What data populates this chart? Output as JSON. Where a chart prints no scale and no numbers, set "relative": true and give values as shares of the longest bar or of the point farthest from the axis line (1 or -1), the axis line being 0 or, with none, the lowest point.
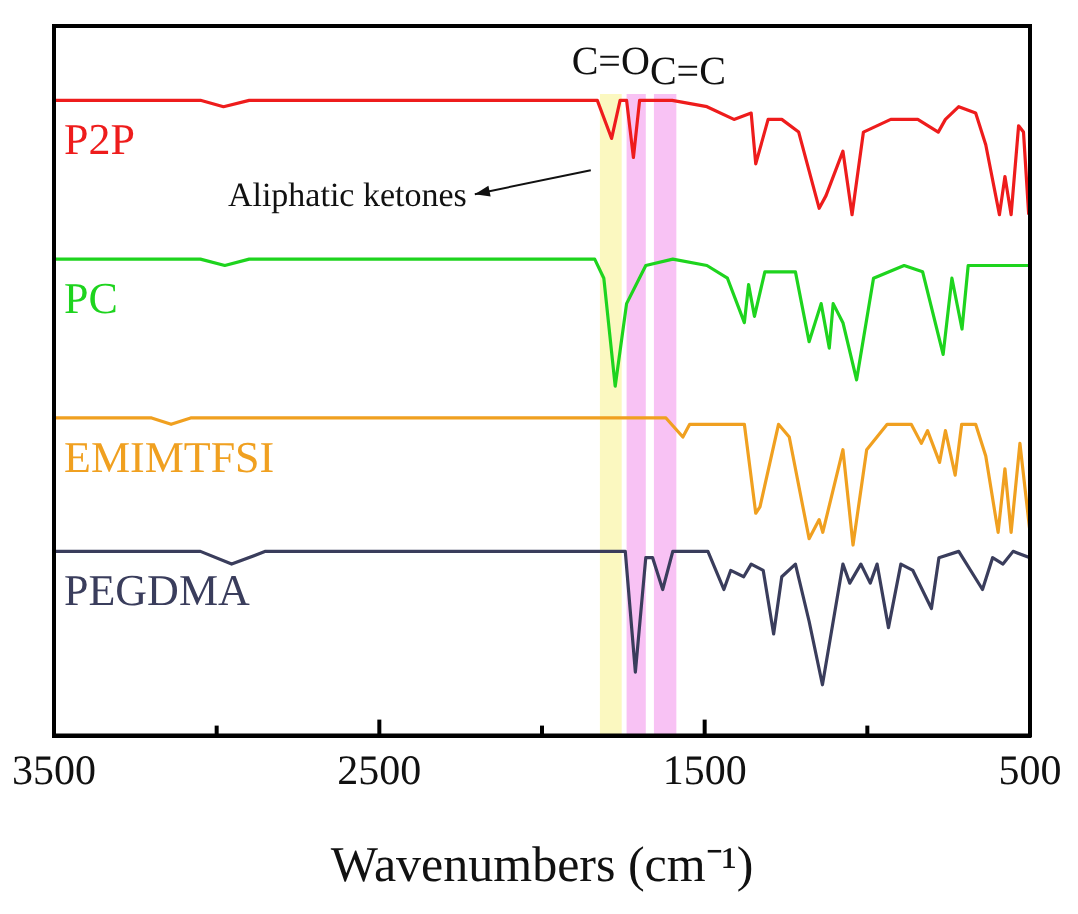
{
  "chart_data": {
    "type": "line",
    "relative": true,
    "xlabel": "Wavenumbers (cm⁻¹)",
    "xlim": [
      3500,
      500
    ],
    "xticks": [
      3500,
      {
        "value": 3000,
        "label": null
      },
      2500,
      {
        "value": 2000,
        "label": null
      },
      1500,
      {
        "value": 1000,
        "label": null
      },
      500
    ],
    "grid": false,
    "legend": false,
    "marker": "none",
    "line_style": "solid",
    "bands": [
      {
        "axis": "x",
        "from": 1822,
        "to": 1755,
        "color": "#fbf8c0"
      },
      {
        "axis": "x",
        "from": 1740,
        "to": 1681,
        "color": "#f8c2f4",
        "label": "C=O"
      },
      {
        "axis": "x",
        "from": 1656,
        "to": 1587,
        "color": "#f8c2f4",
        "label": "C=C"
      }
    ],
    "annotations": [
      {
        "text": "Aliphatic ketones",
        "x": 1850,
        "y": 0.89
      }
    ],
    "series": [
      {
        "name": "P2P",
        "color": "#ee1c1c",
        "x": [
          3500,
          3050,
          2979,
          2900,
          1830,
          1786,
          1760,
          1740,
          1719,
          1700,
          1600,
          1493,
          1410,
          1357,
          1343,
          1305,
          1263,
          1211,
          1148,
          1127,
          1075,
          1047,
          1012,
          928,
          845,
          782,
          760,
          719,
          667,
          636,
          594,
          577,
          558,
          535,
          520,
          504
        ],
        "values": [
          1.0,
          1.0,
          0.99,
          1.0,
          1.0,
          0.94,
          1.0,
          1.0,
          0.91,
          1.0,
          1.0,
          0.99,
          0.97,
          0.98,
          0.9,
          0.97,
          0.97,
          0.95,
          0.83,
          0.85,
          0.92,
          0.82,
          0.95,
          0.97,
          0.97,
          0.95,
          0.97,
          0.99,
          0.98,
          0.93,
          0.82,
          0.88,
          0.82,
          0.96,
          0.95,
          0.82
        ]
      },
      {
        "name": "PC",
        "color": "#1ed41e",
        "x": [
          3500,
          3050,
          2975,
          2900,
          1838,
          1810,
          1775,
          1740,
          1681,
          1598,
          1493,
          1430,
          1378,
          1365,
          1347,
          1315,
          1221,
          1179,
          1142,
          1117,
          1105,
          1075,
          1033,
          981,
          887,
          830,
          767,
          740,
          709,
          690,
          594,
          500
        ],
        "values": [
          0.75,
          0.75,
          0.74,
          0.75,
          0.75,
          0.72,
          0.55,
          0.68,
          0.74,
          0.75,
          0.74,
          0.72,
          0.65,
          0.71,
          0.66,
          0.73,
          0.73,
          0.62,
          0.68,
          0.61,
          0.68,
          0.65,
          0.56,
          0.72,
          0.74,
          0.73,
          0.6,
          0.72,
          0.64,
          0.74,
          0.74,
          0.74
        ]
      },
      {
        "name": "EMIMTFSI",
        "color": "#f0a020",
        "x": [
          3500,
          3200,
          3140,
          3080,
          1619,
          1567,
          1546,
          1450,
          1430,
          1378,
          1343,
          1330,
          1273,
          1240,
          1179,
          1148,
          1137,
          1075,
          1044,
          1002,
          939,
          865,
          834,
          815,
          778,
          760,
          730,
          710,
          667,
          636,
          598,
          577,
          558,
          531,
          500
        ],
        "values": [
          0.5,
          0.5,
          0.49,
          0.5,
          0.5,
          0.47,
          0.49,
          0.49,
          0.49,
          0.49,
          0.35,
          0.36,
          0.49,
          0.47,
          0.31,
          0.34,
          0.32,
          0.45,
          0.3,
          0.45,
          0.49,
          0.49,
          0.46,
          0.48,
          0.43,
          0.48,
          0.41,
          0.49,
          0.49,
          0.44,
          0.32,
          0.42,
          0.32,
          0.46,
          0.32
        ]
      },
      {
        "name": "PEGDMA",
        "color": "#3a3d5c",
        "x": [
          3500,
          3050,
          2954,
          2850,
          1760,
          1744,
          1713,
          1681,
          1660,
          1629,
          1598,
          1490,
          1441,
          1420,
          1380,
          1357,
          1320,
          1288,
          1263,
          1221,
          1179,
          1138,
          1075,
          1054,
          1020,
          991,
          970,
          935,
          897,
          860,
          803,
          780,
          719,
          646,
          615,
          583,
          552,
          500
        ],
        "values": [
          0.29,
          0.29,
          0.27,
          0.29,
          0.29,
          0.29,
          0.1,
          0.28,
          0.28,
          0.23,
          0.29,
          0.29,
          0.23,
          0.26,
          0.25,
          0.27,
          0.26,
          0.16,
          0.25,
          0.27,
          0.18,
          0.08,
          0.27,
          0.24,
          0.27,
          0.24,
          0.27,
          0.17,
          0.27,
          0.26,
          0.2,
          0.28,
          0.29,
          0.23,
          0.28,
          0.27,
          0.29,
          0.28
        ]
      }
    ]
  }
}
